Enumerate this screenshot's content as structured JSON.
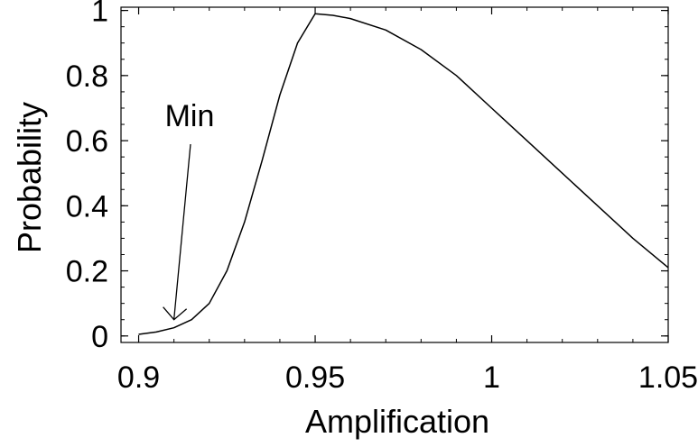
{
  "chart_data": {
    "type": "line",
    "title": "",
    "xlabel": "Amplification",
    "ylabel": "Probability",
    "xlim": [
      0.895,
      1.05
    ],
    "ylim": [
      -0.02,
      1.01
    ],
    "xticks": [
      0.9,
      0.95,
      1,
      1.05
    ],
    "xtick_labels": [
      "0.9",
      "0.95",
      "1",
      "1.05"
    ],
    "yticks": [
      0,
      0.2,
      0.4,
      0.6,
      0.8,
      1
    ],
    "ytick_labels": [
      "0",
      "0.2",
      "0.4",
      "0.6",
      "0.8",
      "1"
    ],
    "grid": false,
    "series": [
      {
        "x": [
          0.9,
          0.905,
          0.91,
          0.915,
          0.92,
          0.925,
          0.93,
          0.935,
          0.94,
          0.945,
          0.95,
          0.955,
          0.96,
          0.97,
          0.98,
          0.99,
          1.0,
          1.01,
          1.02,
          1.03,
          1.04,
          1.05
        ],
        "y": [
          0.005,
          0.012,
          0.025,
          0.05,
          0.1,
          0.2,
          0.35,
          0.54,
          0.74,
          0.9,
          0.99,
          0.985,
          0.975,
          0.94,
          0.88,
          0.8,
          0.7,
          0.6,
          0.5,
          0.4,
          0.3,
          0.21
        ]
      }
    ],
    "annotations": [
      {
        "text": "Min",
        "x": 0.91,
        "y": 0.05
      }
    ]
  }
}
